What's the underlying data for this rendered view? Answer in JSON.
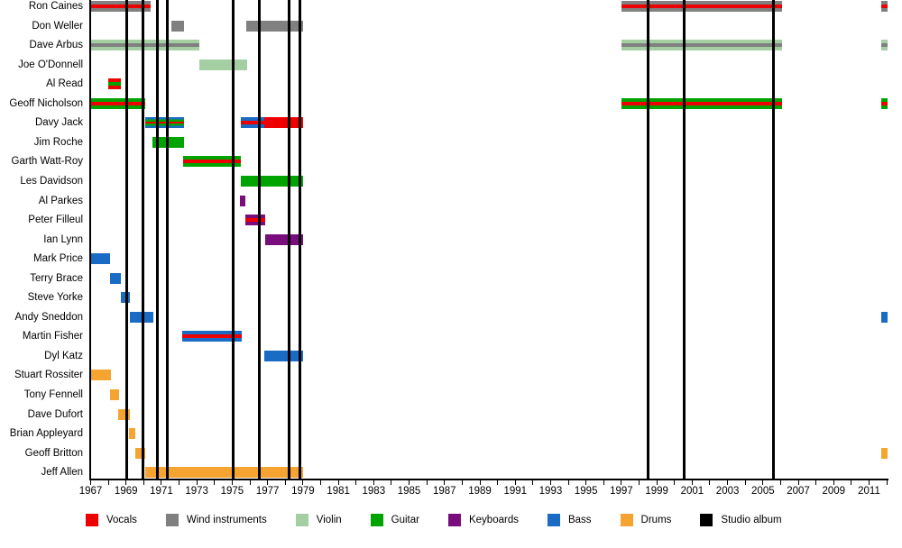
{
  "chart_data": {
    "type": "timeline",
    "description": "Band members timeline with instrument roles and studio album release lines",
    "x_axis": {
      "start_year": 1967,
      "end_year": 2012,
      "tick_step_years": 1,
      "label_step_years": 2,
      "tick_labels": [
        "1967",
        "1969",
        "1971",
        "1973",
        "1975",
        "1977",
        "1979",
        "1981",
        "1983",
        "1985",
        "1987",
        "1989",
        "1991",
        "1993",
        "1995",
        "1997",
        "1999",
        "2001",
        "2003",
        "2005",
        "2007",
        "2009",
        "2011"
      ]
    },
    "grid": "off",
    "legend_position": "bottom",
    "roles": {
      "vocals": {
        "label": "Vocals",
        "color": "#ee0000"
      },
      "wind": {
        "label": "Wind instruments",
        "color": "#808080"
      },
      "violin": {
        "label": "Violin",
        "color": "#a3cfa3"
      },
      "guitar": {
        "label": "Guitar",
        "color": "#00a400"
      },
      "keyboards": {
        "label": "Keyboards",
        "color": "#7a0d7e"
      },
      "bass": {
        "label": "Bass",
        "color": "#1a6bc4"
      },
      "drums": {
        "label": "Drums",
        "color": "#f5a431"
      }
    },
    "legend_order": [
      "vocals",
      "wind",
      "violin",
      "guitar",
      "keyboards",
      "bass",
      "drums",
      "album"
    ],
    "albums": {
      "label": "Studio album",
      "color": "#000000",
      "years": [
        1969.05,
        1969.95,
        1970.75,
        1971.35,
        1975.05,
        1976.55,
        1978.2,
        1978.85,
        1998.5,
        2000.55,
        2005.6
      ]
    },
    "members": [
      {
        "name": "Ron Caines",
        "bars": [
          {
            "start": 1967,
            "end": 1970.4,
            "stripes": [
              "wind",
              "vocals",
              "wind"
            ]
          },
          {
            "start": 1997,
            "end": 2006.1,
            "stripes": [
              "wind",
              "vocals",
              "wind"
            ]
          },
          {
            "start": 2011.7,
            "end": 2012.05,
            "stripes": [
              "wind",
              "vocals",
              "wind"
            ]
          }
        ]
      },
      {
        "name": "Don Weller",
        "bars": [
          {
            "start": 1971.55,
            "end": 1972.3,
            "stripes": [
              "wind"
            ]
          },
          {
            "start": 1975.8,
            "end": 1979,
            "stripes": [
              "wind"
            ]
          }
        ]
      },
      {
        "name": "Dave Arbus",
        "bars": [
          {
            "start": 1967,
            "end": 1973.15,
            "stripes": [
              "violin",
              "wind",
              "violin"
            ]
          },
          {
            "start": 1997,
            "end": 2006.1,
            "stripes": [
              "violin",
              "wind",
              "violin"
            ]
          },
          {
            "start": 2011.7,
            "end": 2012.05,
            "stripes": [
              "violin",
              "wind",
              "violin"
            ]
          }
        ]
      },
      {
        "name": "Joe O'Donnell",
        "bars": [
          {
            "start": 1973.15,
            "end": 1975.85,
            "stripes": [
              "violin"
            ]
          }
        ]
      },
      {
        "name": "Al Read",
        "bars": [
          {
            "start": 1968.0,
            "end": 1968.7,
            "stripes": [
              "vocals",
              "guitar",
              "vocals"
            ]
          }
        ]
      },
      {
        "name": "Geoff Nicholson",
        "bars": [
          {
            "start": 1967,
            "end": 1970.1,
            "stripes": [
              "guitar",
              "vocals",
              "guitar"
            ]
          },
          {
            "start": 1997,
            "end": 2006.1,
            "stripes": [
              "guitar",
              "vocals",
              "guitar"
            ]
          },
          {
            "start": 2011.7,
            "end": 2012.05,
            "stripes": [
              "guitar",
              "vocals",
              "guitar"
            ]
          }
        ]
      },
      {
        "name": "Davy Jack",
        "bars": [
          {
            "start": 1970.1,
            "end": 1972.3,
            "stripes": [
              "bass",
              "guitar",
              "vocals",
              "guitar",
              "bass"
            ]
          },
          {
            "start": 1975.5,
            "end": 1976.8,
            "stripes": [
              "bass",
              "vocals",
              "bass"
            ]
          },
          {
            "start": 1976.8,
            "end": 1979,
            "stripes": [
              "vocals"
            ]
          }
        ]
      },
      {
        "name": "Jim Roche",
        "bars": [
          {
            "start": 1970.5,
            "end": 1972.3,
            "stripes": [
              "guitar"
            ]
          }
        ]
      },
      {
        "name": "Garth Watt-Roy",
        "bars": [
          {
            "start": 1972.25,
            "end": 1975.5,
            "stripes": [
              "guitar",
              "vocals",
              "guitar"
            ]
          }
        ]
      },
      {
        "name": "Les Davidson",
        "bars": [
          {
            "start": 1975.5,
            "end": 1979,
            "stripes": [
              "guitar"
            ]
          }
        ]
      },
      {
        "name": "Al Parkes",
        "bars": [
          {
            "start": 1975.45,
            "end": 1975.75,
            "stripes": [
              "keyboards"
            ]
          }
        ]
      },
      {
        "name": "Peter Filleul",
        "bars": [
          {
            "start": 1975.75,
            "end": 1976.85,
            "stripes": [
              "keyboards",
              "vocals",
              "keyboards"
            ]
          }
        ]
      },
      {
        "name": "Ian Lynn",
        "bars": [
          {
            "start": 1976.85,
            "end": 1979,
            "stripes": [
              "keyboards"
            ]
          }
        ]
      },
      {
        "name": "Mark Price",
        "bars": [
          {
            "start": 1967.05,
            "end": 1968.1,
            "stripes": [
              "bass"
            ]
          }
        ]
      },
      {
        "name": "Terry Brace",
        "bars": [
          {
            "start": 1968.1,
            "end": 1968.7,
            "stripes": [
              "bass"
            ]
          }
        ]
      },
      {
        "name": "Steve Yorke",
        "bars": [
          {
            "start": 1968.7,
            "end": 1969.2,
            "stripes": [
              "bass"
            ]
          }
        ]
      },
      {
        "name": "Andy Sneddon",
        "bars": [
          {
            "start": 1969.2,
            "end": 1970.55,
            "stripes": [
              "bass"
            ]
          },
          {
            "start": 2011.7,
            "end": 2012.05,
            "stripes": [
              "bass"
            ]
          }
        ]
      },
      {
        "name": "Martin Fisher",
        "bars": [
          {
            "start": 1972.2,
            "end": 1975.55,
            "stripes": [
              "bass",
              "vocals",
              "bass"
            ]
          }
        ]
      },
      {
        "name": "Dyl Katz",
        "bars": [
          {
            "start": 1976.8,
            "end": 1979,
            "stripes": [
              "bass"
            ]
          }
        ]
      },
      {
        "name": "Stuart Rossiter",
        "bars": [
          {
            "start": 1967,
            "end": 1968.15,
            "stripes": [
              "drums"
            ]
          }
        ]
      },
      {
        "name": "Tony Fennell",
        "bars": [
          {
            "start": 1968.1,
            "end": 1968.6,
            "stripes": [
              "drums"
            ]
          }
        ]
      },
      {
        "name": "Dave Dufort",
        "bars": [
          {
            "start": 1968.55,
            "end": 1969.2,
            "stripes": [
              "drums"
            ]
          }
        ]
      },
      {
        "name": "Brian Appleyard",
        "bars": [
          {
            "start": 1969.15,
            "end": 1969.5,
            "stripes": [
              "drums"
            ]
          }
        ]
      },
      {
        "name": "Geoff Britton",
        "bars": [
          {
            "start": 1969.5,
            "end": 1970.1,
            "stripes": [
              "drums"
            ]
          },
          {
            "start": 2011.7,
            "end": 2012.05,
            "stripes": [
              "drums"
            ]
          }
        ]
      },
      {
        "name": "Jeff Allen",
        "bars": [
          {
            "start": 1970.1,
            "end": 1979,
            "stripes": [
              "drums"
            ]
          }
        ]
      }
    ]
  }
}
